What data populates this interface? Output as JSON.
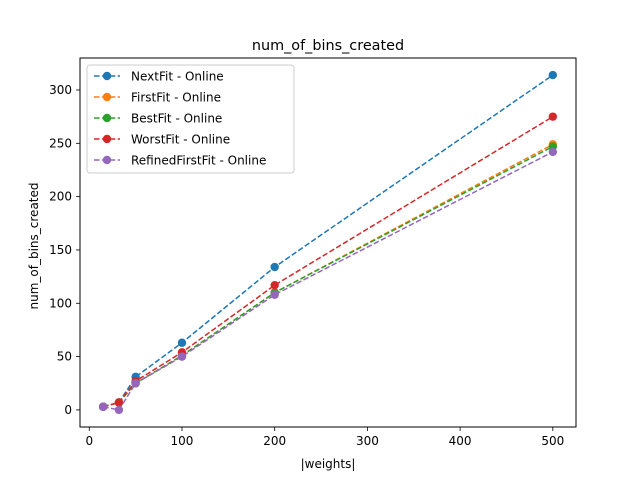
{
  "chart_data": {
    "type": "line",
    "title": "num_of_bins_created",
    "xlabel": "|weights|",
    "ylabel": "num_of_bins_created",
    "xlim": [
      -10,
      525
    ],
    "ylim": [
      -16,
      330
    ],
    "xticks": [
      0,
      100,
      200,
      300,
      400,
      500
    ],
    "yticks": [
      0,
      50,
      100,
      150,
      200,
      250,
      300
    ],
    "grid": false,
    "legend_position": "top-left",
    "line_style": "dashed",
    "x": [
      15,
      32,
      50,
      100,
      200,
      500
    ],
    "series": [
      {
        "name": "NextFit - Online",
        "color": "#1f77b4",
        "values": [
          3,
          7,
          31,
          63,
          134,
          314
        ]
      },
      {
        "name": "FirstFit - Online",
        "color": "#ff7f0e",
        "values": [
          3,
          7,
          25,
          51,
          110,
          249
        ]
      },
      {
        "name": "BestFit - Online",
        "color": "#2ca02c",
        "values": [
          3,
          7,
          25,
          51,
          110,
          247
        ]
      },
      {
        "name": "WorstFit - Online",
        "color": "#d62728",
        "values": [
          3,
          7,
          27,
          54,
          117,
          275
        ]
      },
      {
        "name": "RefinedFirstFit - Online",
        "color": "#9467bd",
        "values": [
          3,
          0,
          25,
          50,
          108,
          242
        ]
      }
    ]
  }
}
